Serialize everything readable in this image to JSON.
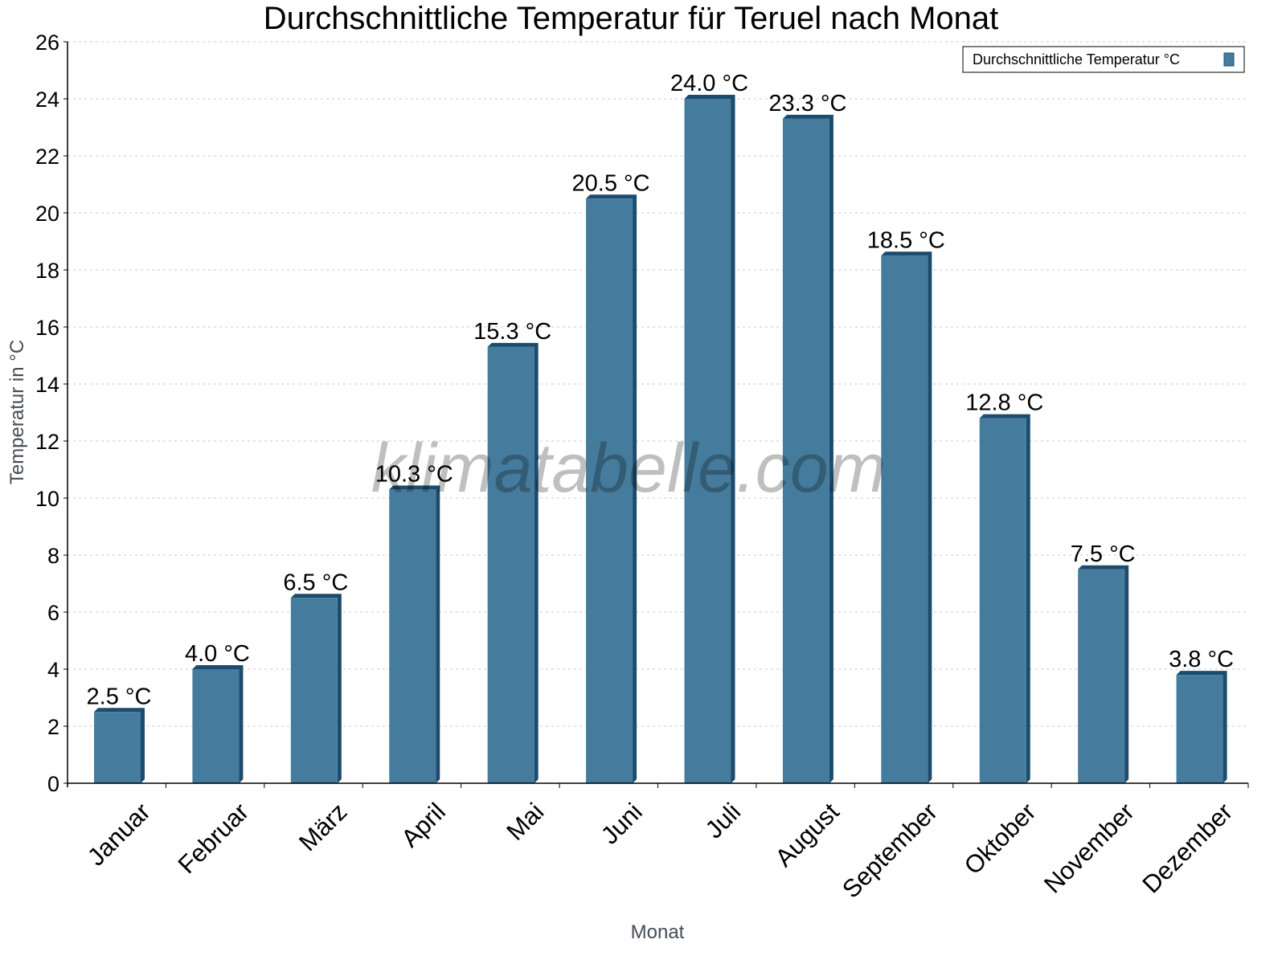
{
  "chart_data": {
    "type": "bar",
    "title": "Durchschnittliche Temperatur für Teruel nach Monat",
    "xlabel": "Monat",
    "ylabel": "Temperatur in °C",
    "categories": [
      "Januar",
      "Februar",
      "März",
      "April",
      "Mai",
      "Juni",
      "Juli",
      "August",
      "September",
      "Oktober",
      "November",
      "Dezember"
    ],
    "series": [
      {
        "name": "Durchschnittliche Temperatur °C",
        "values": [
          2.5,
          4.0,
          6.5,
          10.3,
          15.3,
          20.5,
          24.0,
          23.3,
          18.5,
          12.8,
          7.5,
          3.8
        ],
        "labels": [
          "2.5 °C",
          "4.0 °C",
          "6.5 °C",
          "10.3 °C",
          "15.3 °C",
          "20.5 °C",
          "24.0 °C",
          "23.3 °C",
          "18.5 °C",
          "12.8 °C",
          "7.5 °C",
          "3.8 °C"
        ]
      }
    ],
    "ylim": [
      0,
      26
    ],
    "yticks": [
      0,
      2,
      4,
      6,
      8,
      10,
      12,
      14,
      16,
      18,
      20,
      22,
      24,
      26
    ],
    "grid": true,
    "legend": "top-right",
    "colors": {
      "bar": "#457b9d",
      "bar_shade": "#1b4b6d",
      "grid": "#c8c8c8"
    },
    "watermark": "klimatabelle.com"
  }
}
